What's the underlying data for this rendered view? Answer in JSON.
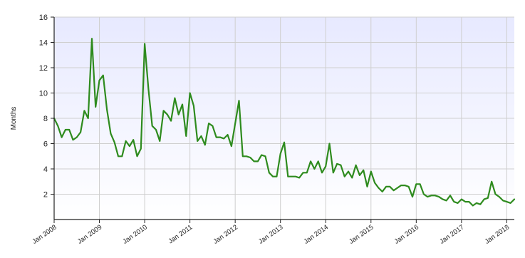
{
  "chart_data": {
    "type": "line",
    "title": "",
    "xlabel": "",
    "ylabel": "Months",
    "ylim": [
      0,
      16
    ],
    "xlim": [
      "2008-01",
      "2018-03"
    ],
    "grid": true,
    "legend": "none",
    "y_ticks": [
      {
        "value": 2,
        "label": "2"
      },
      {
        "value": 4,
        "label": "4"
      },
      {
        "value": 6,
        "label": "6"
      },
      {
        "value": 8,
        "label": "8"
      },
      {
        "value": 10,
        "label": "10"
      },
      {
        "value": 12,
        "label": "12"
      },
      {
        "value": 14,
        "label": "14"
      },
      {
        "value": 16,
        "label": "16"
      }
    ],
    "x_ticks": [
      {
        "value": "2008-01",
        "label": "Jan 2008"
      },
      {
        "value": "2009-01",
        "label": "Jan 2009"
      },
      {
        "value": "2010-01",
        "label": "Jan 2010"
      },
      {
        "value": "2011-01",
        "label": "Jan 2011"
      },
      {
        "value": "2012-01",
        "label": "Jan 2012"
      },
      {
        "value": "2013-01",
        "label": "Jan 2013"
      },
      {
        "value": "2014-01",
        "label": "Jan 2014"
      },
      {
        "value": "2015-01",
        "label": "Jan 2015"
      },
      {
        "value": "2016-01",
        "label": "Jan 2016"
      },
      {
        "value": "2017-01",
        "label": "Jan 2017"
      },
      {
        "value": "2018-01",
        "label": "Jan 2018"
      }
    ],
    "colors": {
      "plot_background_top": "#e7e9ff",
      "plot_background_bottom": "#ffffff",
      "line": "#2e8b1e",
      "grid": "#cfcfcf",
      "axis": "#222222"
    },
    "series": [
      {
        "name": "",
        "x": [
          "2008-01",
          "2008-02",
          "2008-03",
          "2008-04",
          "2008-05",
          "2008-06",
          "2008-07",
          "2008-08",
          "2008-09",
          "2008-10",
          "2008-11",
          "2008-12",
          "2009-01",
          "2009-02",
          "2009-03",
          "2009-04",
          "2009-05",
          "2009-06",
          "2009-07",
          "2009-08",
          "2009-09",
          "2009-10",
          "2009-11",
          "2009-12",
          "2010-01",
          "2010-02",
          "2010-03",
          "2010-04",
          "2010-05",
          "2010-06",
          "2010-07",
          "2010-08",
          "2010-09",
          "2010-10",
          "2010-11",
          "2010-12",
          "2011-01",
          "2011-02",
          "2011-03",
          "2011-04",
          "2011-05",
          "2011-06",
          "2011-07",
          "2011-08",
          "2011-09",
          "2011-10",
          "2011-11",
          "2011-12",
          "2012-01",
          "2012-02",
          "2012-03",
          "2012-04",
          "2012-05",
          "2012-06",
          "2012-07",
          "2012-08",
          "2012-09",
          "2012-10",
          "2012-11",
          "2012-12",
          "2013-01",
          "2013-02",
          "2013-03",
          "2013-04",
          "2013-05",
          "2013-06",
          "2013-07",
          "2013-08",
          "2013-09",
          "2013-10",
          "2013-11",
          "2013-12",
          "2014-01",
          "2014-02",
          "2014-03",
          "2014-04",
          "2014-05",
          "2014-06",
          "2014-07",
          "2014-08",
          "2014-09",
          "2014-10",
          "2014-11",
          "2014-12",
          "2015-01",
          "2015-02",
          "2015-03",
          "2015-04",
          "2015-05",
          "2015-06",
          "2015-07",
          "2015-08",
          "2015-09",
          "2015-10",
          "2015-11",
          "2015-12",
          "2016-01",
          "2016-02",
          "2016-03",
          "2016-04",
          "2016-05",
          "2016-06",
          "2016-07",
          "2016-08",
          "2016-09",
          "2016-10",
          "2016-11",
          "2016-12",
          "2017-01",
          "2017-02",
          "2017-03",
          "2017-04",
          "2017-05",
          "2017-06",
          "2017-07",
          "2017-08",
          "2017-09",
          "2017-10",
          "2017-11",
          "2017-12",
          "2018-01",
          "2018-02",
          "2018-03"
        ],
        "values": [
          8.0,
          7.4,
          6.5,
          7.1,
          7.1,
          6.3,
          6.5,
          6.9,
          8.6,
          8.0,
          14.3,
          8.9,
          11.0,
          11.4,
          8.7,
          6.8,
          6.1,
          5.0,
          5.0,
          6.2,
          5.8,
          6.3,
          5.0,
          5.6,
          13.9,
          10.3,
          7.4,
          7.1,
          6.2,
          8.6,
          8.3,
          7.8,
          9.6,
          8.3,
          9.1,
          6.6,
          10.0,
          9.0,
          6.2,
          6.6,
          5.9,
          7.6,
          7.4,
          6.5,
          6.5,
          6.4,
          6.7,
          5.8,
          7.6,
          9.4,
          5.0,
          5.0,
          4.9,
          4.6,
          4.6,
          5.1,
          5.0,
          3.7,
          3.4,
          3.4,
          5.2,
          6.1,
          3.4,
          3.4,
          3.4,
          3.3,
          3.7,
          3.7,
          4.6,
          4.0,
          4.6,
          3.7,
          4.2,
          6.0,
          3.7,
          4.4,
          4.3,
          3.4,
          3.8,
          3.3,
          4.3,
          3.5,
          3.9,
          2.6,
          3.8,
          2.9,
          2.5,
          2.2,
          2.6,
          2.6,
          2.3,
          2.5,
          2.7,
          2.7,
          2.6,
          1.8,
          2.8,
          2.8,
          2.0,
          1.8,
          1.9,
          1.9,
          1.8,
          1.6,
          1.5,
          1.9,
          1.4,
          1.3,
          1.6,
          1.4,
          1.4,
          1.1,
          1.3,
          1.2,
          1.6,
          1.7,
          3.0,
          2.0,
          1.8,
          1.5,
          1.4,
          1.3,
          1.6
        ]
      }
    ]
  }
}
